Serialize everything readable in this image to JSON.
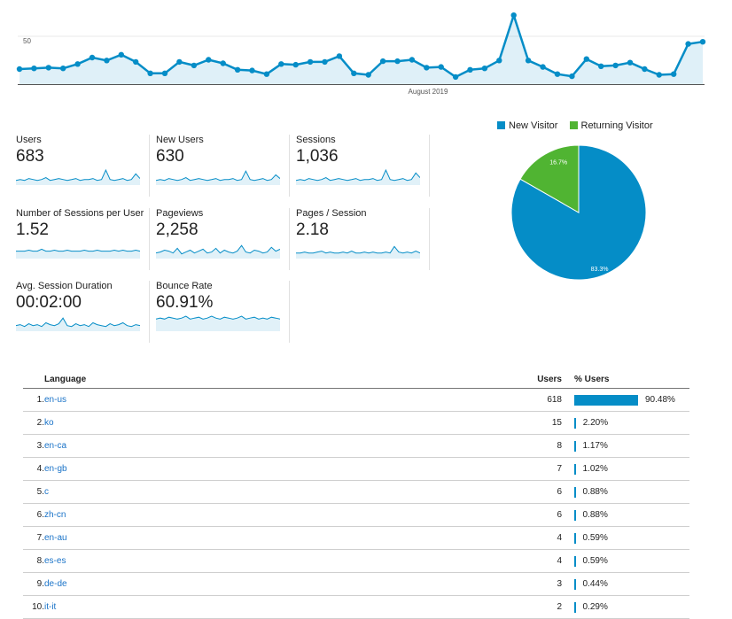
{
  "chart_data": [
    {
      "type": "area",
      "x_tick_label": "August 2019",
      "y_tick_label": "50",
      "ylim": [
        0,
        100
      ],
      "values": [
        21,
        22,
        23,
        22,
        28,
        37,
        33,
        41,
        31,
        15,
        15,
        31,
        26,
        34,
        29,
        20,
        19,
        14,
        28,
        27,
        31,
        31,
        39,
        15,
        13,
        32,
        32,
        34,
        23,
        24,
        10,
        20,
        22,
        33,
        96,
        33,
        24,
        14,
        11,
        35,
        25,
        26,
        30,
        21,
        13,
        14,
        56,
        59
      ],
      "color": "#058dc7"
    },
    {
      "type": "pie",
      "legend": [
        {
          "name": "New Visitor",
          "color": "#058dc7"
        },
        {
          "name": "Returning Visitor",
          "color": "#50b432"
        }
      ],
      "slices": [
        {
          "name": "New Visitor",
          "value": 83.3,
          "label": "83.3%",
          "color": "#058dc7"
        },
        {
          "name": "Returning Visitor",
          "value": 16.7,
          "label": "16.7%",
          "color": "#50b432"
        }
      ]
    }
  ],
  "metrics": [
    {
      "label": "Users",
      "value": "683",
      "spark": [
        5,
        6,
        5,
        7,
        6,
        5,
        6,
        8,
        5,
        6,
        7,
        6,
        5,
        6,
        7,
        5,
        6,
        6,
        7,
        5,
        6,
        16,
        6,
        5,
        6,
        7,
        5,
        6,
        12,
        7
      ]
    },
    {
      "label": "New Users",
      "value": "630",
      "spark": [
        5,
        6,
        5,
        7,
        6,
        5,
        6,
        8,
        5,
        6,
        7,
        6,
        5,
        6,
        7,
        5,
        6,
        6,
        7,
        5,
        6,
        15,
        6,
        5,
        6,
        7,
        5,
        6,
        11,
        7
      ]
    },
    {
      "label": "Sessions",
      "value": "1,036",
      "spark": [
        5,
        6,
        5,
        7,
        6,
        5,
        6,
        8,
        5,
        6,
        7,
        6,
        5,
        6,
        7,
        5,
        6,
        6,
        7,
        5,
        6,
        16,
        6,
        5,
        6,
        7,
        5,
        6,
        13,
        8
      ]
    },
    {
      "label": "Number of Sessions per User",
      "value": "1.52",
      "spark": [
        8,
        8,
        8,
        9,
        8,
        8,
        10,
        8,
        8,
        9,
        8,
        8,
        9,
        8,
        8,
        8,
        9,
        8,
        8,
        9,
        8,
        8,
        8,
        9,
        8,
        9,
        8,
        8,
        9,
        8
      ]
    },
    {
      "label": "Pageviews",
      "value": "2,258",
      "spark": [
        6,
        7,
        9,
        8,
        6,
        11,
        5,
        7,
        9,
        6,
        8,
        10,
        6,
        7,
        11,
        6,
        9,
        7,
        6,
        8,
        14,
        7,
        6,
        9,
        8,
        6,
        7,
        12,
        8,
        10
      ]
    },
    {
      "label": "Pages / Session",
      "value": "2.18",
      "spark": [
        6,
        6,
        7,
        6,
        6,
        7,
        8,
        6,
        7,
        6,
        6,
        7,
        6,
        8,
        6,
        6,
        7,
        6,
        7,
        6,
        6,
        7,
        6,
        13,
        7,
        6,
        7,
        6,
        8,
        6
      ]
    },
    {
      "label": "Avg. Session Duration",
      "value": "00:02:00",
      "spark": [
        6,
        7,
        5,
        8,
        6,
        7,
        5,
        9,
        7,
        6,
        8,
        14,
        6,
        5,
        8,
        6,
        7,
        5,
        9,
        7,
        6,
        5,
        8,
        6,
        7,
        9,
        6,
        5,
        7,
        6
      ]
    },
    {
      "label": "Bounce Rate",
      "value": "60.91%",
      "spark": [
        13,
        14,
        13,
        15,
        14,
        13,
        14,
        16,
        13,
        14,
        15,
        13,
        14,
        16,
        14,
        13,
        15,
        14,
        13,
        14,
        16,
        13,
        14,
        15,
        13,
        14,
        13,
        15,
        14,
        13
      ]
    }
  ],
  "table": {
    "headers": {
      "language": "Language",
      "users": "Users",
      "pct_users": "% Users"
    },
    "rows": [
      {
        "rank": "1.",
        "language": "en-us",
        "users": "618",
        "pct": "90.48%",
        "share": 90.48
      },
      {
        "rank": "2.",
        "language": "ko",
        "users": "15",
        "pct": "2.20%",
        "share": 2.2
      },
      {
        "rank": "3.",
        "language": "en-ca",
        "users": "8",
        "pct": "1.17%",
        "share": 1.17
      },
      {
        "rank": "4.",
        "language": "en-gb",
        "users": "7",
        "pct": "1.02%",
        "share": 1.02
      },
      {
        "rank": "5.",
        "language": "c",
        "users": "6",
        "pct": "0.88%",
        "share": 0.88
      },
      {
        "rank": "6.",
        "language": "zh-cn",
        "users": "6",
        "pct": "0.88%",
        "share": 0.88
      },
      {
        "rank": "7.",
        "language": "en-au",
        "users": "4",
        "pct": "0.59%",
        "share": 0.59
      },
      {
        "rank": "8.",
        "language": "es-es",
        "users": "4",
        "pct": "0.59%",
        "share": 0.59
      },
      {
        "rank": "9.",
        "language": "de-de",
        "users": "3",
        "pct": "0.44%",
        "share": 0.44
      },
      {
        "rank": "10.",
        "language": "it-it",
        "users": "2",
        "pct": "0.29%",
        "share": 0.29
      }
    ]
  }
}
